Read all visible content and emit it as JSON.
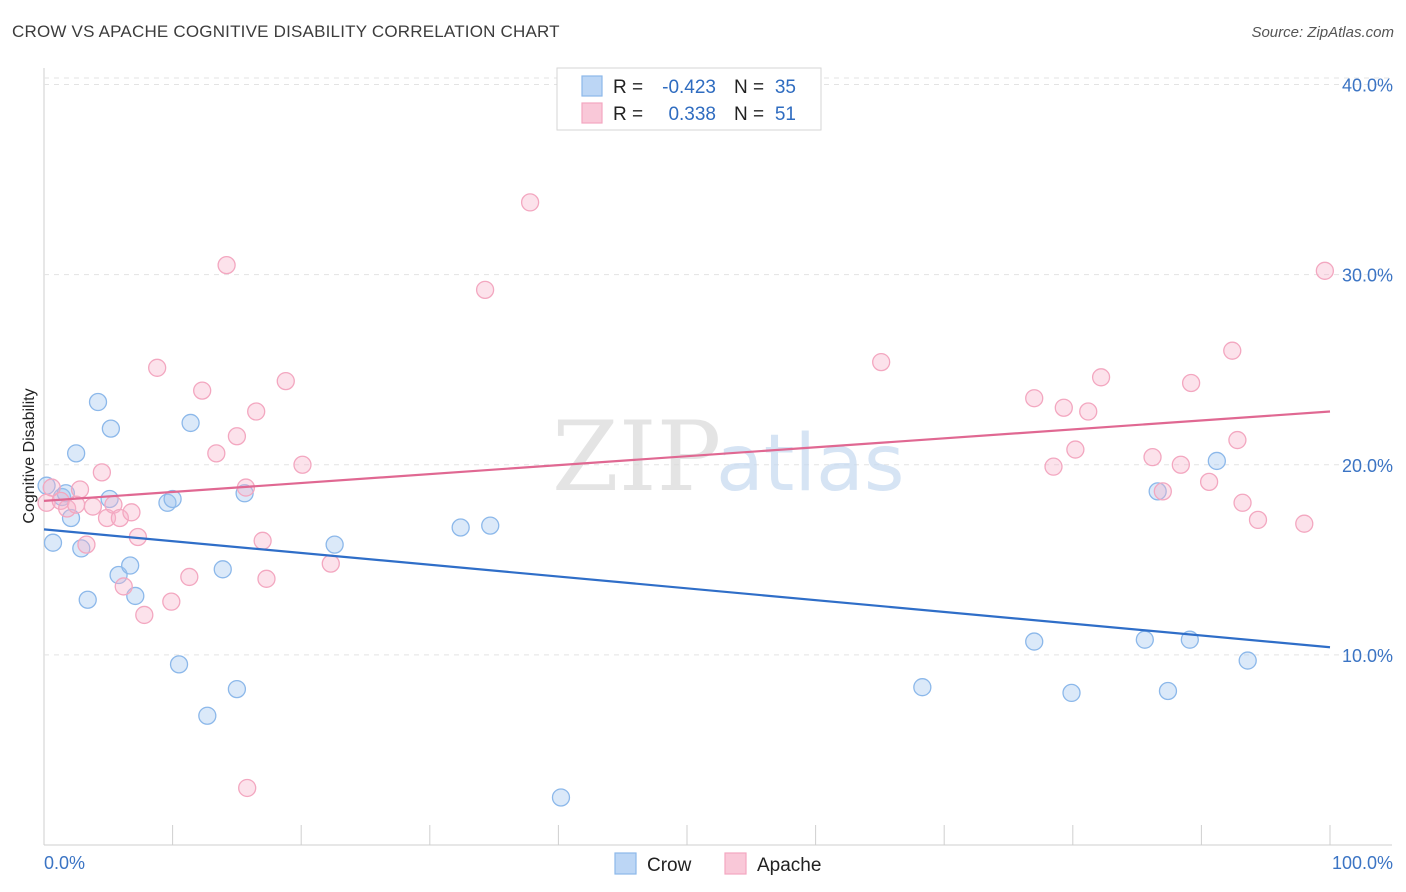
{
  "title": "CROW VS APACHE COGNITIVE DISABILITY CORRELATION CHART",
  "source": "Source: ZipAtlas.com",
  "watermark": {
    "zip": "ZIP",
    "atlas": "atlas"
  },
  "chart_data": {
    "type": "scatter",
    "ylabel": "Cognitive Disability",
    "xlabel": "",
    "x_tick_labels": [
      "0.0%",
      "100.0%"
    ],
    "y_tick_labels": [
      "10.0%",
      "20.0%",
      "30.0%",
      "40.0%"
    ],
    "y_ticks": [
      10,
      20,
      30,
      40
    ],
    "xlim": [
      0,
      100
    ],
    "ylim": [
      0,
      41.5
    ],
    "grid": true,
    "legend_position": "top-center",
    "series": [
      {
        "name": "Crow",
        "color": "#8cb8ea",
        "line_color": "#2f6ec8",
        "R": "-0.423",
        "N": "35",
        "trend": [
          [
            0,
            16.6
          ],
          [
            100,
            10.4
          ]
        ],
        "points": [
          [
            0.2,
            18.9
          ],
          [
            0.7,
            15.9
          ],
          [
            1.4,
            18.3
          ],
          [
            1.7,
            18.5
          ],
          [
            2.1,
            17.2
          ],
          [
            2.5,
            20.6
          ],
          [
            2.9,
            15.6
          ],
          [
            3.4,
            12.9
          ],
          [
            4.2,
            23.3
          ],
          [
            5.2,
            21.9
          ],
          [
            5.1,
            18.2
          ],
          [
            5.8,
            14.2
          ],
          [
            6.7,
            14.7
          ],
          [
            7.1,
            13.1
          ],
          [
            9.6,
            18.0
          ],
          [
            10.0,
            18.2
          ],
          [
            10.5,
            9.5
          ],
          [
            11.4,
            22.2
          ],
          [
            12.7,
            6.8
          ],
          [
            13.9,
            14.5
          ],
          [
            15.0,
            8.2
          ],
          [
            15.6,
            18.5
          ],
          [
            22.6,
            15.8
          ],
          [
            32.4,
            16.7
          ],
          [
            34.7,
            16.8
          ],
          [
            40.2,
            2.5
          ],
          [
            68.3,
            8.3
          ],
          [
            77.0,
            10.7
          ],
          [
            79.9,
            8.0
          ],
          [
            86.6,
            18.6
          ],
          [
            85.6,
            10.8
          ],
          [
            87.4,
            8.1
          ],
          [
            89.1,
            10.8
          ],
          [
            91.2,
            20.2
          ],
          [
            93.6,
            9.7
          ]
        ]
      },
      {
        "name": "Apache",
        "color": "#f3a7c0",
        "line_color": "#e06892",
        "R": "0.338",
        "N": "51",
        "trend": [
          [
            0,
            18.1
          ],
          [
            100,
            22.8
          ]
        ],
        "points": [
          [
            0.2,
            18.0
          ],
          [
            0.6,
            18.8
          ],
          [
            1.3,
            18.1
          ],
          [
            1.8,
            17.7
          ],
          [
            2.5,
            17.9
          ],
          [
            2.8,
            18.7
          ],
          [
            3.3,
            15.8
          ],
          [
            3.8,
            17.8
          ],
          [
            4.5,
            19.6
          ],
          [
            4.9,
            17.2
          ],
          [
            5.4,
            17.9
          ],
          [
            5.9,
            17.2
          ],
          [
            6.2,
            13.6
          ],
          [
            6.8,
            17.5
          ],
          [
            7.3,
            16.2
          ],
          [
            7.8,
            12.1
          ],
          [
            8.8,
            25.1
          ],
          [
            9.9,
            12.8
          ],
          [
            11.3,
            14.1
          ],
          [
            12.3,
            23.9
          ],
          [
            13.4,
            20.6
          ],
          [
            14.2,
            30.5
          ],
          [
            15.0,
            21.5
          ],
          [
            15.8,
            3.0
          ],
          [
            15.7,
            18.8
          ],
          [
            16.5,
            22.8
          ],
          [
            17.0,
            16.0
          ],
          [
            17.3,
            14.0
          ],
          [
            18.8,
            24.4
          ],
          [
            20.1,
            20.0
          ],
          [
            22.3,
            14.8
          ],
          [
            34.3,
            29.2
          ],
          [
            37.8,
            33.8
          ],
          [
            65.1,
            25.4
          ],
          [
            77.0,
            23.5
          ],
          [
            78.5,
            19.9
          ],
          [
            79.3,
            23.0
          ],
          [
            80.2,
            20.8
          ],
          [
            81.2,
            22.8
          ],
          [
            82.2,
            24.6
          ],
          [
            86.2,
            20.4
          ],
          [
            87.0,
            18.6
          ],
          [
            88.4,
            20.0
          ],
          [
            89.2,
            24.3
          ],
          [
            90.6,
            19.1
          ],
          [
            92.4,
            26.0
          ],
          [
            92.8,
            21.3
          ],
          [
            93.2,
            18.0
          ],
          [
            94.4,
            17.1
          ],
          [
            98.0,
            16.9
          ],
          [
            99.6,
            30.2
          ]
        ]
      }
    ]
  },
  "legend": {
    "r_label": "R =",
    "n_label": "N ="
  }
}
